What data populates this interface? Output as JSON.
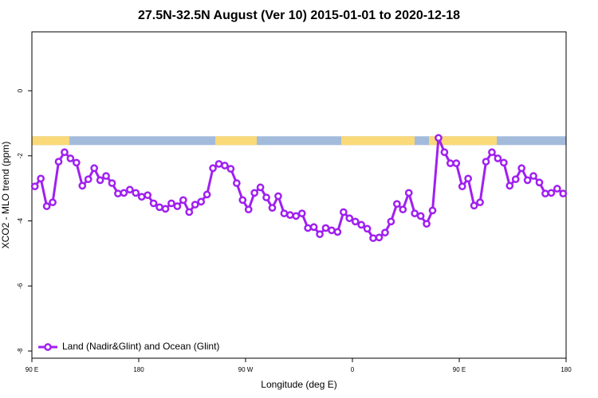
{
  "chart_data": {
    "type": "line",
    "title": "27.5N-32.5N August (Ver 10)   2015-01-01 to 2020-12-18",
    "xlabel": "Longitude (deg E)",
    "ylabel": "XCO2 - MLO trend (ppm)",
    "xlim": [
      90,
      540
    ],
    "ylim": [
      -8.22,
      1.81
    ],
    "xticks": [
      {
        "value": 90,
        "label": "90 E"
      },
      180,
      {
        "value": 270,
        "label": "90 W"
      },
      {
        "value": 360,
        "label": "0"
      },
      {
        "value": 450,
        "label": "90 E"
      },
      {
        "value": 540,
        "label": "180"
      }
    ],
    "yticks": [
      0,
      -2,
      -4,
      -6,
      -8
    ],
    "legend": "bottom-left",
    "strip": {
      "ylim": [
        -1.67,
        -1.4
      ],
      "ocean_color": "#a3bbdb",
      "land_color": "#fad978",
      "land": [
        [
          90,
          121.6
        ],
        [
          244.5,
          279.4
        ],
        [
          350.6,
          412.4
        ],
        [
          424.5,
          481.6
        ]
      ]
    },
    "x": [
      92.5,
      97.5,
      102.5,
      107.5,
      112.5,
      117.5,
      122.5,
      127.5,
      132.5,
      137.5,
      142.5,
      147.5,
      152.5,
      157.5,
      162.5,
      167.5,
      172.5,
      177.5,
      182.5,
      187.5,
      192.5,
      197.5,
      202.5,
      207.5,
      212.5,
      217.5,
      222.5,
      227.5,
      232.5,
      237.5,
      242.5,
      247.5,
      252.5,
      257.5,
      262.5,
      267.5,
      272.5,
      277.5,
      282.5,
      287.5,
      292.5,
      297.5,
      302.5,
      307.5,
      312.5,
      317.5,
      322.5,
      327.5,
      332.5,
      337.5,
      342.5,
      347.5,
      352.5,
      357.5,
      362.5,
      367.5,
      372.5,
      377.5,
      382.5,
      387.5,
      392.5,
      397.5,
      402.5,
      407.5,
      412.5,
      417.5,
      422.5,
      427.5,
      432.5,
      437.5,
      442.5,
      447.5,
      452.5,
      457.5,
      462.5,
      467.5,
      472.5,
      477.5,
      482.5,
      487.5,
      492.5,
      497.5,
      502.5,
      507.5,
      512.5,
      517.5,
      522.5,
      527.5,
      532.5,
      537.5
    ],
    "series": [
      {
        "name": "Land (Nadir&Glint) and Ocean (Glint)",
        "color": "#a020f0",
        "values": [
          -2.94,
          -2.7,
          -3.55,
          -3.43,
          -2.18,
          -1.89,
          -2.08,
          -2.21,
          -2.92,
          -2.72,
          -2.38,
          -2.75,
          -2.62,
          -2.84,
          -3.16,
          -3.14,
          -3.04,
          -3.14,
          -3.26,
          -3.21,
          -3.46,
          -3.58,
          -3.63,
          -3.46,
          -3.55,
          -3.36,
          -3.73,
          -3.5,
          -3.41,
          -3.19,
          -2.38,
          -2.25,
          -2.3,
          -2.4,
          -2.84,
          -3.36,
          -3.65,
          -3.14,
          -2.97,
          -3.28,
          -3.6,
          -3.24,
          -3.77,
          -3.82,
          -3.85,
          -3.77,
          -4.22,
          -4.19,
          -4.41,
          -4.22,
          -4.29,
          -4.34,
          -3.73,
          -3.92,
          -4.02,
          -4.12,
          -4.24,
          -4.53,
          -4.51,
          -4.36,
          -4.02,
          -3.48,
          -3.65,
          -3.14,
          -3.77,
          -3.85,
          -4.09,
          -3.68,
          -1.45,
          -1.89,
          -2.23,
          -2.23,
          -2.94,
          -2.7,
          -3.53,
          -3.43,
          -2.18,
          -1.89,
          -2.08,
          -2.21,
          -2.92,
          -2.72,
          -2.38,
          -2.75,
          -2.62,
          -2.82,
          -3.16,
          -3.14,
          -3.01,
          -3.16
        ]
      }
    ]
  }
}
